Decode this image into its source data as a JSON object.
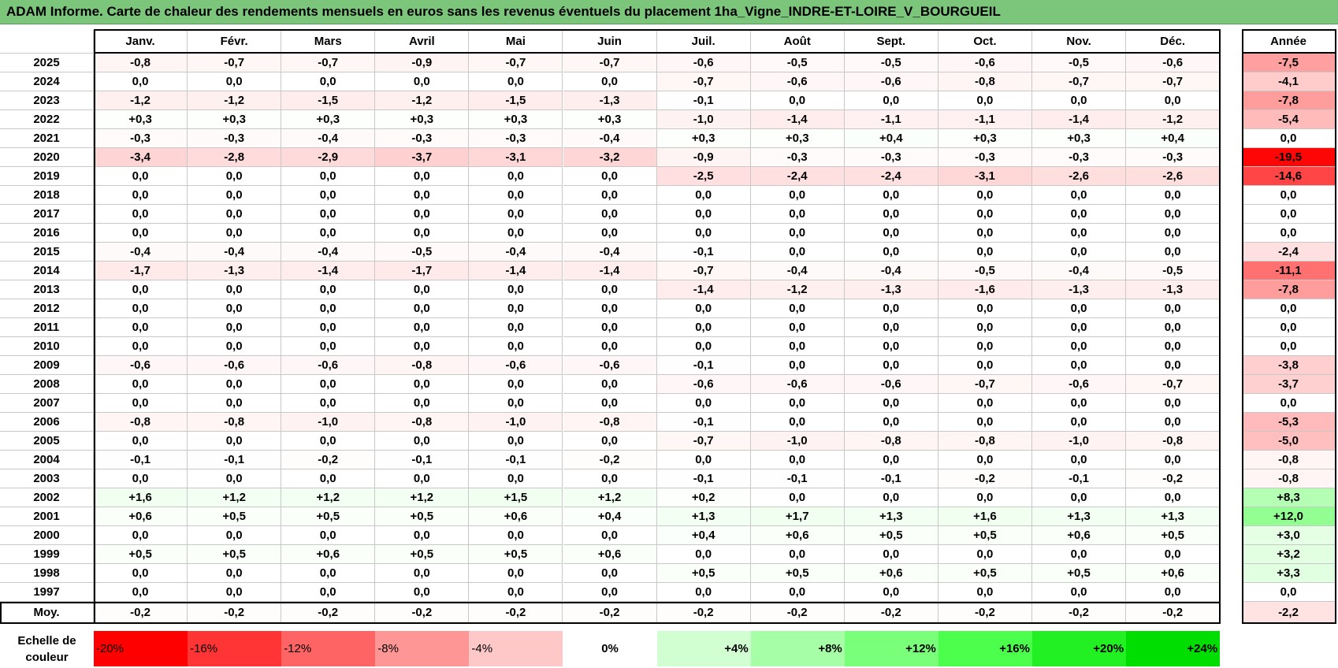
{
  "header": {
    "title": "ADAM Informe. Carte de chaleur des rendements mensuels en euros sans les revenus éventuels du placement 1ha_Vigne_INDRE-ET-LOIRE_V_BOURGUEIL"
  },
  "table": {
    "columns": [
      "Janv.",
      "Févr.",
      "Mars",
      "Avril",
      "Mai",
      "Juin",
      "Juil.",
      "Août",
      "Sept.",
      "Oct.",
      "Nov.",
      "Déc."
    ],
    "total_column": "Année",
    "rows": [
      {
        "year": "2025",
        "months": [
          "-0,8",
          "-0,7",
          "-0,7",
          "-0,9",
          "-0,7",
          "-0,7",
          "-0,6",
          "-0,5",
          "-0,5",
          "-0,6",
          "-0,5",
          "-0,6"
        ],
        "total": "-7,5"
      },
      {
        "year": "2024",
        "months": [
          "0,0",
          "0,0",
          "0,0",
          "0,0",
          "0,0",
          "0,0",
          "-0,7",
          "-0,6",
          "-0,6",
          "-0,8",
          "-0,7",
          "-0,7"
        ],
        "total": "-4,1"
      },
      {
        "year": "2023",
        "months": [
          "-1,2",
          "-1,2",
          "-1,5",
          "-1,2",
          "-1,5",
          "-1,3",
          "-0,1",
          "0,0",
          "0,0",
          "0,0",
          "0,0",
          "0,0"
        ],
        "total": "-7,8"
      },
      {
        "year": "2022",
        "months": [
          "+0,3",
          "+0,3",
          "+0,3",
          "+0,3",
          "+0,3",
          "+0,3",
          "-1,0",
          "-1,4",
          "-1,1",
          "-1,1",
          "-1,4",
          "-1,2"
        ],
        "total": "-5,4"
      },
      {
        "year": "2021",
        "months": [
          "-0,3",
          "-0,3",
          "-0,4",
          "-0,3",
          "-0,3",
          "-0,4",
          "+0,3",
          "+0,3",
          "+0,4",
          "+0,3",
          "+0,3",
          "+0,4"
        ],
        "total": "0,0"
      },
      {
        "year": "2020",
        "months": [
          "-3,4",
          "-2,8",
          "-2,9",
          "-3,7",
          "-3,1",
          "-3,2",
          "-0,9",
          "-0,3",
          "-0,3",
          "-0,3",
          "-0,3",
          "-0,3"
        ],
        "total": "-19,5"
      },
      {
        "year": "2019",
        "months": [
          "0,0",
          "0,0",
          "0,0",
          "0,0",
          "0,0",
          "0,0",
          "-2,5",
          "-2,4",
          "-2,4",
          "-3,1",
          "-2,6",
          "-2,6"
        ],
        "total": "-14,6"
      },
      {
        "year": "2018",
        "months": [
          "0,0",
          "0,0",
          "0,0",
          "0,0",
          "0,0",
          "0,0",
          "0,0",
          "0,0",
          "0,0",
          "0,0",
          "0,0",
          "0,0"
        ],
        "total": "0,0"
      },
      {
        "year": "2017",
        "months": [
          "0,0",
          "0,0",
          "0,0",
          "0,0",
          "0,0",
          "0,0",
          "0,0",
          "0,0",
          "0,0",
          "0,0",
          "0,0",
          "0,0"
        ],
        "total": "0,0"
      },
      {
        "year": "2016",
        "months": [
          "0,0",
          "0,0",
          "0,0",
          "0,0",
          "0,0",
          "0,0",
          "0,0",
          "0,0",
          "0,0",
          "0,0",
          "0,0",
          "0,0"
        ],
        "total": "0,0"
      },
      {
        "year": "2015",
        "months": [
          "-0,4",
          "-0,4",
          "-0,4",
          "-0,5",
          "-0,4",
          "-0,4",
          "-0,1",
          "0,0",
          "0,0",
          "0,0",
          "0,0",
          "0,0"
        ],
        "total": "-2,4"
      },
      {
        "year": "2014",
        "months": [
          "-1,7",
          "-1,3",
          "-1,4",
          "-1,7",
          "-1,4",
          "-1,4",
          "-0,7",
          "-0,4",
          "-0,4",
          "-0,5",
          "-0,4",
          "-0,5"
        ],
        "total": "-11,1"
      },
      {
        "year": "2013",
        "months": [
          "0,0",
          "0,0",
          "0,0",
          "0,0",
          "0,0",
          "0,0",
          "-1,4",
          "-1,2",
          "-1,3",
          "-1,6",
          "-1,3",
          "-1,3"
        ],
        "total": "-7,8"
      },
      {
        "year": "2012",
        "months": [
          "0,0",
          "0,0",
          "0,0",
          "0,0",
          "0,0",
          "0,0",
          "0,0",
          "0,0",
          "0,0",
          "0,0",
          "0,0",
          "0,0"
        ],
        "total": "0,0"
      },
      {
        "year": "2011",
        "months": [
          "0,0",
          "0,0",
          "0,0",
          "0,0",
          "0,0",
          "0,0",
          "0,0",
          "0,0",
          "0,0",
          "0,0",
          "0,0",
          "0,0"
        ],
        "total": "0,0"
      },
      {
        "year": "2010",
        "months": [
          "0,0",
          "0,0",
          "0,0",
          "0,0",
          "0,0",
          "0,0",
          "0,0",
          "0,0",
          "0,0",
          "0,0",
          "0,0",
          "0,0"
        ],
        "total": "0,0"
      },
      {
        "year": "2009",
        "months": [
          "-0,6",
          "-0,6",
          "-0,6",
          "-0,8",
          "-0,6",
          "-0,6",
          "-0,1",
          "0,0",
          "0,0",
          "0,0",
          "0,0",
          "0,0"
        ],
        "total": "-3,8"
      },
      {
        "year": "2008",
        "months": [
          "0,0",
          "0,0",
          "0,0",
          "0,0",
          "0,0",
          "0,0",
          "-0,6",
          "-0,6",
          "-0,6",
          "-0,7",
          "-0,6",
          "-0,7"
        ],
        "total": "-3,7"
      },
      {
        "year": "2007",
        "months": [
          "0,0",
          "0,0",
          "0,0",
          "0,0",
          "0,0",
          "0,0",
          "0,0",
          "0,0",
          "0,0",
          "0,0",
          "0,0",
          "0,0"
        ],
        "total": "0,0"
      },
      {
        "year": "2006",
        "months": [
          "-0,8",
          "-0,8",
          "-1,0",
          "-0,8",
          "-1,0",
          "-0,8",
          "-0,1",
          "0,0",
          "0,0",
          "0,0",
          "0,0",
          "0,0"
        ],
        "total": "-5,3"
      },
      {
        "year": "2005",
        "months": [
          "0,0",
          "0,0",
          "0,0",
          "0,0",
          "0,0",
          "0,0",
          "-0,7",
          "-1,0",
          "-0,8",
          "-0,8",
          "-1,0",
          "-0,8"
        ],
        "total": "-5,0"
      },
      {
        "year": "2004",
        "months": [
          "-0,1",
          "-0,1",
          "-0,2",
          "-0,1",
          "-0,1",
          "-0,2",
          "0,0",
          "0,0",
          "0,0",
          "0,0",
          "0,0",
          "0,0"
        ],
        "total": "-0,8"
      },
      {
        "year": "2003",
        "months": [
          "0,0",
          "0,0",
          "0,0",
          "0,0",
          "0,0",
          "0,0",
          "-0,1",
          "-0,1",
          "-0,1",
          "-0,2",
          "-0,1",
          "-0,2"
        ],
        "total": "-0,8"
      },
      {
        "year": "2002",
        "months": [
          "+1,6",
          "+1,2",
          "+1,2",
          "+1,2",
          "+1,5",
          "+1,2",
          "+0,2",
          "0,0",
          "0,0",
          "0,0",
          "0,0",
          "0,0"
        ],
        "total": "+8,3"
      },
      {
        "year": "2001",
        "months": [
          "+0,6",
          "+0,5",
          "+0,5",
          "+0,5",
          "+0,6",
          "+0,4",
          "+1,3",
          "+1,7",
          "+1,3",
          "+1,6",
          "+1,3",
          "+1,3"
        ],
        "total": "+12,0"
      },
      {
        "year": "2000",
        "months": [
          "0,0",
          "0,0",
          "0,0",
          "0,0",
          "0,0",
          "0,0",
          "+0,4",
          "+0,6",
          "+0,5",
          "+0,5",
          "+0,6",
          "+0,5"
        ],
        "total": "+3,0"
      },
      {
        "year": "1999",
        "months": [
          "+0,5",
          "+0,5",
          "+0,6",
          "+0,5",
          "+0,5",
          "+0,6",
          "0,0",
          "0,0",
          "0,0",
          "0,0",
          "0,0",
          "0,0"
        ],
        "total": "+3,2"
      },
      {
        "year": "1998",
        "months": [
          "0,0",
          "0,0",
          "0,0",
          "0,0",
          "0,0",
          "0,0",
          "+0,5",
          "+0,5",
          "+0,6",
          "+0,5",
          "+0,5",
          "+0,6"
        ],
        "total": "+3,3"
      },
      {
        "year": "1997",
        "months": [
          "0,0",
          "0,0",
          "0,0",
          "0,0",
          "0,0",
          "0,0",
          "0,0",
          "0,0",
          "0,0",
          "0,0",
          "0,0",
          "0,0"
        ],
        "total": "0,0"
      }
    ],
    "average": {
      "label": "Moy.",
      "months": [
        "-0,2",
        "-0,2",
        "-0,2",
        "-0,2",
        "-0,2",
        "-0,2",
        "-0,2",
        "-0,2",
        "-0,2",
        "-0,2",
        "-0,2",
        "-0,2"
      ],
      "total": "-2,2"
    }
  },
  "scale": {
    "label": "Echelle de couleur",
    "steps": [
      "-20%",
      "-16%",
      "-12%",
      "-8%",
      "-4%",
      "0%",
      "+4%",
      "+8%",
      "+12%",
      "+16%",
      "+20%",
      "+24%"
    ]
  }
}
